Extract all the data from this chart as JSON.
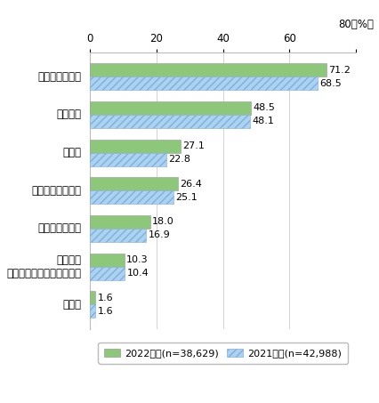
{
  "categories": [
    "スマートフォン",
    "パソコン",
    "テレビ",
    "タブレット型端末",
    "家庭用ゲーム機",
    "携帯電話\n（スマートフォンを除く）",
    "その他"
  ],
  "values_2022": [
    71.2,
    48.5,
    27.1,
    26.4,
    18.0,
    10.3,
    1.6
  ],
  "values_2021": [
    68.5,
    48.1,
    22.8,
    25.1,
    16.9,
    10.4,
    1.6
  ],
  "color_2022": "#8DC87A",
  "color_2021": "#A8D4F0",
  "hatch_2021": "////",
  "xlim_max": 80,
  "xticks": [
    0,
    20,
    40,
    60,
    80
  ],
  "xlabel_str": "80（%）",
  "legend_2022": "2022年　(n=38,629)",
  "legend_2021": "2021年　(n=42,988)",
  "bar_height": 0.35,
  "label_fontsize": 8.5,
  "tick_fontsize": 8.5,
  "value_fontsize": 8.0,
  "legend_fontsize": 8.0,
  "fig_width": 4.27,
  "fig_height": 4.53,
  "dpi": 100,
  "background_color": "#ffffff",
  "spine_color": "#bbbbbb",
  "grid_color": "#cccccc"
}
